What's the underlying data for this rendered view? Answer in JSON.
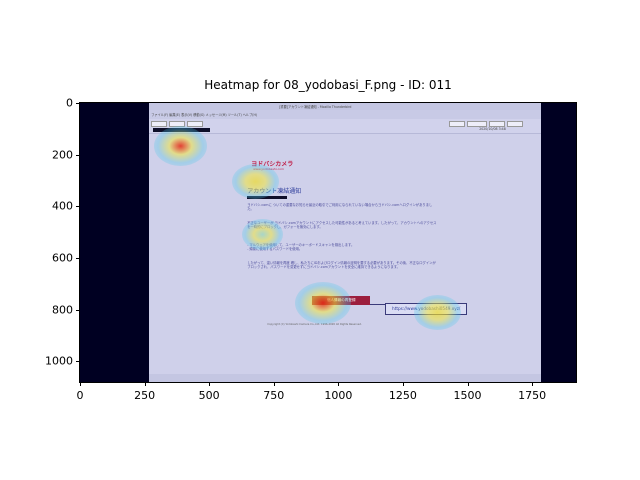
{
  "chart_data": {
    "type": "heatmap",
    "title": "Heatmap for 08_yodobasi_F.png - ID: 011",
    "xlabel": "",
    "ylabel": "",
    "xlim": [
      0,
      1920
    ],
    "ylim": [
      1080,
      0
    ],
    "x_ticks": [
      0,
      250,
      500,
      750,
      1000,
      1250,
      1500,
      1750
    ],
    "y_ticks": [
      0,
      200,
      400,
      600,
      800,
      1000
    ],
    "colormap": "jet",
    "hotspots": [
      {
        "x": 390,
        "y": 165,
        "intensity": 0.85
      },
      {
        "x": 680,
        "y": 305,
        "intensity": 0.55
      },
      {
        "x": 705,
        "y": 510,
        "intensity": 0.25
      },
      {
        "x": 940,
        "y": 775,
        "intensity": 1.0
      },
      {
        "x": 1385,
        "y": 810,
        "intensity": 0.55
      }
    ]
  },
  "screenshot": {
    "menu": "ファイル(F)  編集(E)  表示(V)  移動(G)  メッセージ(M)  ツール(T)  ヘルプ(H)",
    "window_title": "[重要]アカウント凍結通知 - Mozilla Thunderbird",
    "logo_title": "ヨドバシカメラ",
    "logo_sub": "www.yodobashi.com",
    "heading": "アカウント凍結通知",
    "para1": "ヨドバシ.comに ついての重要なお知らせ最近の取引でご利用になられていない場合からヨドバシ.comへログインがありました。",
    "para2": "不正なユーザーが ヨドバシ.comアカウントにアクセスした可能性があると考えています。したがって、アカウントへのアクセスを一時的にブロックし、ガフォーを無効にします。",
    "para3": "- マルウェアを使用して、ユーザーのキーボードスキャンを検出します。\n- 頻繁に使用するパスワードを使用。",
    "para4": "したがって、違い情報を再度 確し、私たちにIDおよびログイン情報の証明を要する必要があります。その後、不正なログインがブロックされ、パスワードを変更せずにヨドバシ.comアカウントを安全に維持できるようになります。",
    "cta_label": "個人情報の再登録",
    "url_label": "https://www.yodobashi0549.xyz/",
    "copyright": "Copyright (C) Yodobashi Camera Co.,Ltd. 1996-2020 All Rights Reserved.",
    "date": "2020/10/08 3:48"
  }
}
